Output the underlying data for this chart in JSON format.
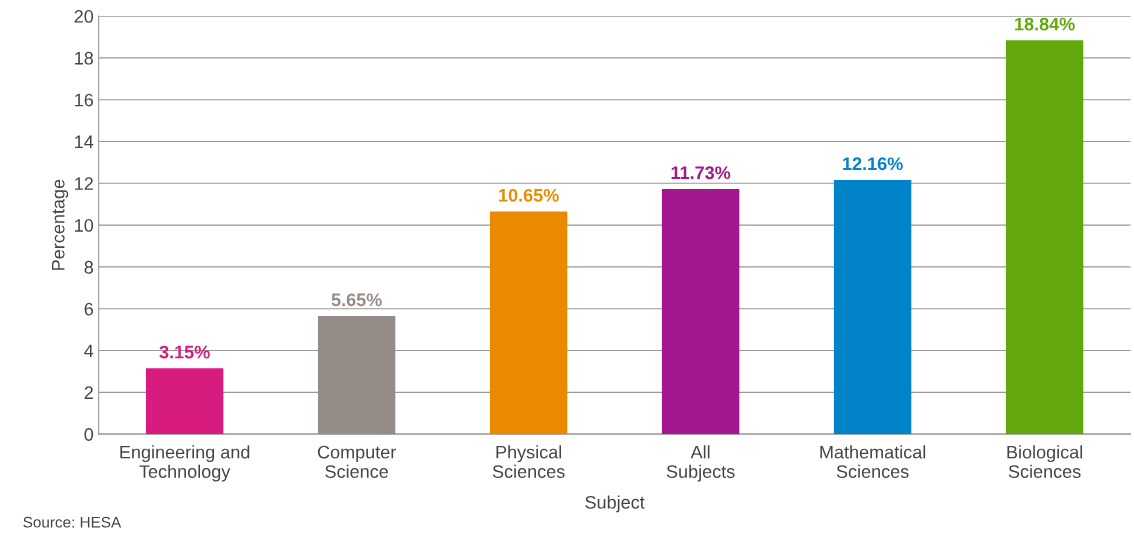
{
  "chart_data": {
    "type": "bar",
    "xlabel": "Subject",
    "ylabel": "Percentage",
    "categories": [
      "Engineering and\nTechnology",
      "Computer\nScience",
      "Physical\nSciences",
      "All\nSubjects",
      "Mathematical\nSciences",
      "Biological\nSciences"
    ],
    "values": [
      3.15,
      5.65,
      10.65,
      11.73,
      12.16,
      18.84
    ],
    "colors": [
      "#d81b7f",
      "#968c87",
      "#e98a00",
      "#a3178f",
      "#0083c8",
      "#62a80c"
    ],
    "value_labels": [
      "3.15%",
      "5.65%",
      "10.65%",
      "11.73%",
      "12.16%",
      "18.84%"
    ],
    "ylim": [
      0,
      20
    ],
    "yticks": [
      0,
      2,
      4,
      6,
      8,
      10,
      12,
      14,
      16,
      18,
      20
    ],
    "grid": "y",
    "legend": false,
    "annotations": [
      "Source: HESA"
    ]
  }
}
